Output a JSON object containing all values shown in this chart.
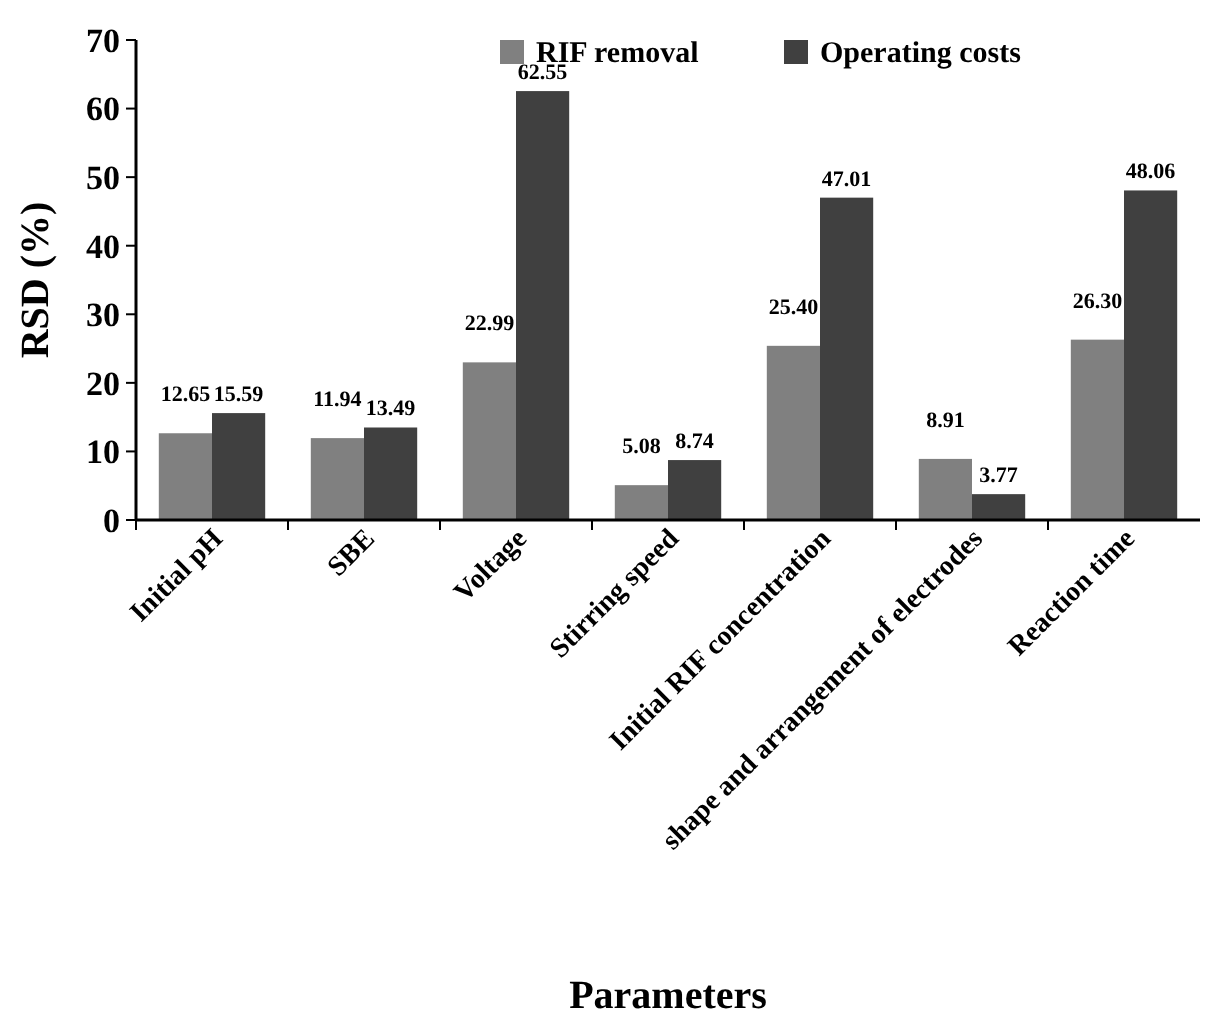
{
  "chart_data": {
    "type": "bar",
    "ylabel": "RSD (%)",
    "xlabel": "Parameters",
    "categories": [
      "Initial pH",
      "SBE",
      "Voltage",
      "Stirring speed",
      "Initial RIF concentration",
      "shape and arrangement of electrodes",
      "Reaction time"
    ],
    "series": [
      {
        "name": "RIF removal",
        "color": "#808080",
        "values": [
          12.65,
          11.94,
          22.99,
          5.08,
          25.4,
          8.91,
          26.3
        ],
        "value_labels": [
          "12.65",
          "11.94",
          "22.99",
          "5.08",
          "25.40",
          "8.91",
          "26.30"
        ]
      },
      {
        "name": "Operating costs",
        "color": "#404040",
        "values": [
          15.59,
          13.49,
          62.55,
          8.74,
          47.01,
          3.77,
          48.06
        ],
        "value_labels": [
          "15.59",
          "13.49",
          "62.55",
          "8.74",
          "47.01",
          "3.77",
          "48.06"
        ]
      }
    ],
    "ylim": [
      0,
      70
    ],
    "yticks": [
      0,
      10,
      20,
      30,
      40,
      50,
      60,
      70
    ],
    "grid": false,
    "legend": "top"
  }
}
